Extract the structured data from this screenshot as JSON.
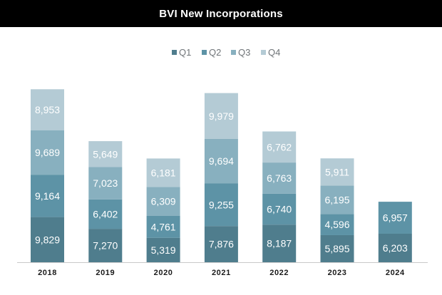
{
  "header": {
    "title": "BVI New Incorporations"
  },
  "chart_data": {
    "type": "bar",
    "stacked": true,
    "title": "BVI New Incorporations",
    "xlabel": "",
    "ylabel": "",
    "ylim": [
      0,
      40000
    ],
    "grid": false,
    "legend": "top",
    "categories": [
      "2018",
      "2019",
      "2020",
      "2021",
      "2022",
      "2023",
      "2024"
    ],
    "series": [
      {
        "name": "Q1",
        "color": "#4f7d8d",
        "values": [
          9829,
          7270,
          5319,
          7876,
          8187,
          5895,
          6203
        ]
      },
      {
        "name": "Q2",
        "color": "#5d93a6",
        "values": [
          9164,
          6402,
          4761,
          9255,
          6740,
          4596,
          6957
        ]
      },
      {
        "name": "Q3",
        "color": "#88b0bf",
        "values": [
          9689,
          7023,
          6309,
          9694,
          6763,
          6195,
          null
        ]
      },
      {
        "name": "Q4",
        "color": "#b4cbd5",
        "values": [
          8953,
          5649,
          6181,
          9979,
          6762,
          5911,
          null
        ]
      }
    ],
    "data_labels": [
      [
        "9,829",
        "7,270",
        "5,319",
        "7,876",
        "8,187",
        "5,895",
        "6,203"
      ],
      [
        "9,164",
        "6,402",
        "4,761",
        "9,255",
        "6,740",
        "4,596",
        "6,957"
      ],
      [
        "9,689",
        "7,023",
        "6,309",
        "9,694",
        "6,763",
        "6,195",
        ""
      ],
      [
        "8,953",
        "5,649",
        "6,181",
        "9,979",
        "6,762",
        "5,911",
        ""
      ]
    ],
    "axis_color": "#c9c9c9"
  }
}
